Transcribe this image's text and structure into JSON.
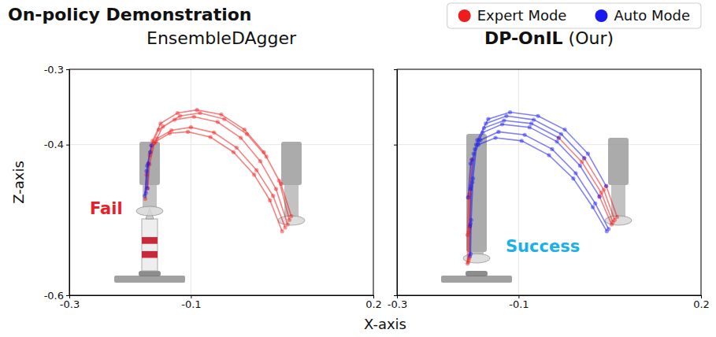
{
  "chart_data": {
    "type": "scatter",
    "title": "On-policy Demonstration",
    "xlabel": "X-axis",
    "ylabel": "Z-axis",
    "legend": "top-right",
    "grid": true,
    "marker": "circle",
    "line_style": "solid",
    "panels": [
      {
        "title": "EnsembleDAgger",
        "xlim": [
          -0.3,
          0.2
        ],
        "ylim": [
          -0.6,
          -0.3
        ],
        "xticks": [
          -0.3,
          -0.1,
          0.2
        ],
        "yticks": [
          -0.3,
          -0.4,
          -0.6
        ],
        "annotation": {
          "text": "Fail",
          "color": "#e8202a"
        },
        "series": [
          {
            "name": "Expert Mode",
            "color": "#ee1c1c",
            "x": [
              0.059,
              0.04,
              0.014,
              -0.018,
              -0.056,
              -0.095,
              -0.127,
              -0.153,
              -0.165,
              null,
              0.062,
              0.045,
              0.02,
              -0.012,
              -0.05,
              -0.09,
              -0.122,
              -0.15,
              -0.163,
              -0.17,
              null,
              0.055,
              0.035,
              0.008,
              -0.025,
              -0.062,
              -0.1,
              -0.132,
              -0.156,
              -0.167,
              null,
              0.065,
              0.048,
              0.024,
              -0.008,
              -0.045,
              -0.085,
              -0.118,
              -0.146,
              -0.16,
              -0.168,
              -0.171,
              null,
              0.05,
              0.03,
              0.004,
              -0.03,
              -0.068,
              -0.105,
              -0.135,
              -0.158,
              -0.168,
              -0.173,
              -0.175
            ],
            "values": [
              -0.506,
              -0.459,
              -0.422,
              -0.391,
              -0.37,
              -0.363,
              -0.367,
              -0.38,
              -0.401,
              null,
              -0.5,
              -0.448,
              -0.41,
              -0.38,
              -0.36,
              -0.354,
              -0.358,
              -0.372,
              -0.395,
              -0.425,
              null,
              -0.51,
              -0.468,
              -0.434,
              -0.404,
              -0.384,
              -0.377,
              -0.381,
              -0.392,
              -0.41,
              null,
              -0.495,
              -0.452,
              -0.416,
              -0.386,
              -0.366,
              -0.358,
              -0.362,
              -0.376,
              -0.398,
              -0.426,
              -0.458,
              null,
              -0.515,
              -0.474,
              -0.44,
              -0.41,
              -0.39,
              -0.383,
              -0.385,
              -0.396,
              -0.414,
              -0.44,
              -0.472
            ]
          },
          {
            "name": "Auto Mode",
            "color": "#1a1aee",
            "x": [
              -0.165,
              -0.172,
              -0.174,
              null,
              -0.17,
              -0.172,
              null,
              -0.167,
              -0.173,
              -0.176
            ],
            "values": [
              -0.401,
              -0.428,
              -0.464,
              null,
              -0.425,
              -0.458,
              null,
              -0.41,
              -0.435,
              -0.468
            ]
          }
        ]
      },
      {
        "title": "DP-OnIL (Our)",
        "xlim": [
          -0.3,
          0.2
        ],
        "ylim": [
          -0.6,
          -0.3
        ],
        "xticks": [
          -0.3,
          -0.1,
          0.2
        ],
        "yticks": [
          -0.3,
          -0.4,
          -0.6
        ],
        "tick_labels": "x",
        "annotation": {
          "text": "Success",
          "color": "#1ab0e8"
        },
        "series": [
          {
            "name": "Expert Mode",
            "color": "#ee1c1c",
            "x": [
              0.053,
              0.033,
              null,
              -0.179,
              -0.181,
              -0.182,
              null,
              0.058,
              0.04,
              0.008,
              null,
              -0.177,
              -0.181,
              -0.182,
              -0.183,
              null,
              0.062,
              0.044,
              null,
              -0.183,
              -0.184,
              -0.184,
              null,
              0.055,
              0.036,
              0.004,
              -0.034,
              null,
              -0.18,
              -0.181
            ],
            "values": [
              -0.506,
              -0.469,
              null,
              -0.459,
              -0.511,
              -0.553,
              null,
              -0.5,
              -0.46,
              -0.418,
              null,
              -0.42,
              -0.466,
              -0.516,
              -0.556,
              null,
              -0.496,
              -0.455,
              null,
              -0.47,
              -0.52,
              -0.558,
              null,
              -0.503,
              -0.464,
              -0.423,
              -0.391,
              null,
              -0.508,
              -0.55
            ]
          },
          {
            "name": "Auto Mode",
            "color": "#1a1aee",
            "x": [
              0.033,
              0.001,
              -0.037,
              -0.082,
              -0.127,
              -0.159,
              -0.174,
              -0.179,
              null,
              0.008,
              -0.03,
              -0.075,
              -0.12,
              -0.154,
              -0.17,
              -0.176,
              -0.179,
              -0.18,
              null,
              0.048,
              0.026,
              -0.006,
              -0.045,
              -0.09,
              -0.133,
              -0.163,
              -0.177,
              null,
              0.044,
              0.014,
              -0.024,
              -0.068,
              -0.114,
              -0.15,
              -0.168,
              -0.175,
              -0.178,
              -0.179,
              null,
              0.045,
              0.022,
              -0.01,
              -0.05,
              -0.095,
              -0.138,
              -0.166,
              -0.179,
              -0.183,
              null,
              -0.034,
              -0.079,
              -0.124,
              -0.157,
              -0.172,
              -0.178,
              -0.18
            ],
            "values": [
              -0.469,
              -0.428,
              -0.396,
              -0.377,
              -0.373,
              -0.384,
              -0.412,
              -0.459,
              null,
              -0.418,
              -0.386,
              -0.367,
              -0.362,
              -0.372,
              -0.4,
              -0.45,
              -0.505,
              -0.548,
              null,
              -0.512,
              -0.478,
              -0.438,
              -0.406,
              -0.387,
              -0.383,
              -0.394,
              -0.42,
              null,
              -0.455,
              -0.412,
              -0.38,
              -0.362,
              -0.357,
              -0.366,
              -0.394,
              -0.445,
              -0.5,
              -0.545,
              null,
              -0.515,
              -0.483,
              -0.445,
              -0.414,
              -0.395,
              -0.391,
              -0.4,
              -0.425,
              -0.47,
              null,
              -0.391,
              -0.372,
              -0.368,
              -0.378,
              -0.406,
              -0.455,
              -0.508
            ]
          }
        ]
      }
    ]
  }
}
